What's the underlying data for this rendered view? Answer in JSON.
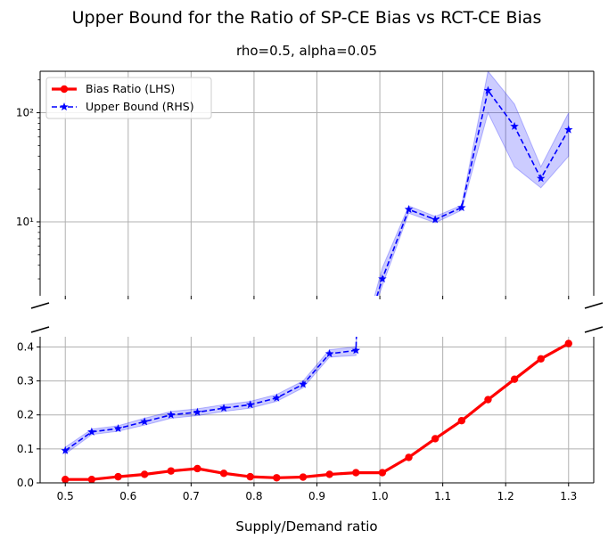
{
  "chart_data": {
    "type": "line",
    "title": "Upper Bound for the Ratio of SP-CE Bias vs RCT-CE Bias",
    "subtitle": "rho=0.5, alpha=0.05",
    "xlabel": "Supply/Demand ratio",
    "xlim": [
      0.46,
      1.34
    ],
    "x_ticks": [
      "0.5",
      "0.6",
      "0.7",
      "0.8",
      "0.9",
      "1.0",
      "1.1",
      "1.2",
      "1.3"
    ],
    "grid": true,
    "broken_y_axis": true,
    "top_panel": {
      "yscale": "log",
      "ylim": [
        2.1,
        240
      ],
      "y_ticks": [
        "10¹",
        "10²"
      ]
    },
    "bottom_panel": {
      "yscale": "linear",
      "ylim": [
        0,
        0.43
      ],
      "y_ticks": [
        "0.0",
        "0.1",
        "0.2",
        "0.3",
        "0.4"
      ]
    },
    "legend": {
      "placement": "upper-left of top panel",
      "entries": [
        "Bias Ratio (LHS)",
        "Upper Bound (RHS)"
      ]
    },
    "colors": {
      "bias_ratio": "#ff0000",
      "upper_bound": "#0000ff",
      "band": "#0000ff",
      "grid": "#b0b0b0"
    },
    "x": [
      0.5,
      0.542,
      0.584,
      0.626,
      0.668,
      0.71,
      0.752,
      0.794,
      0.836,
      0.878,
      0.92,
      0.962,
      1.004,
      1.046,
      1.088,
      1.13,
      1.172,
      1.214,
      1.256,
      1.3
    ],
    "series": [
      {
        "name": "Bias Ratio (LHS)",
        "style": "solid",
        "marker": "circle",
        "values": [
          0.01,
          0.01,
          0.018,
          0.025,
          0.035,
          0.042,
          0.028,
          0.018,
          0.015,
          0.017,
          0.025,
          0.03,
          0.03,
          0.075,
          0.13,
          0.183,
          0.245,
          0.305,
          0.365,
          0.41
        ]
      },
      {
        "name": "Upper Bound (RHS)",
        "style": "dashed",
        "marker": "star",
        "values": [
          0.095,
          0.15,
          0.16,
          0.18,
          0.2,
          0.208,
          0.22,
          0.23,
          0.25,
          0.29,
          0.38,
          0.39,
          3.0,
          13.0,
          10.5,
          13.5,
          160,
          75,
          25,
          70
        ],
        "band_lower": [
          0.085,
          0.142,
          0.152,
          0.17,
          0.19,
          0.198,
          0.21,
          0.22,
          0.24,
          0.28,
          0.37,
          0.375,
          2.6,
          12.0,
          9.8,
          12.8,
          100,
          32,
          20.5,
          40
        ],
        "band_upper": [
          0.105,
          0.158,
          0.168,
          0.19,
          0.21,
          0.218,
          0.23,
          0.24,
          0.26,
          0.3,
          0.392,
          0.4,
          3.8,
          14.0,
          11.2,
          14.2,
          240,
          120,
          32,
          100
        ]
      }
    ]
  }
}
